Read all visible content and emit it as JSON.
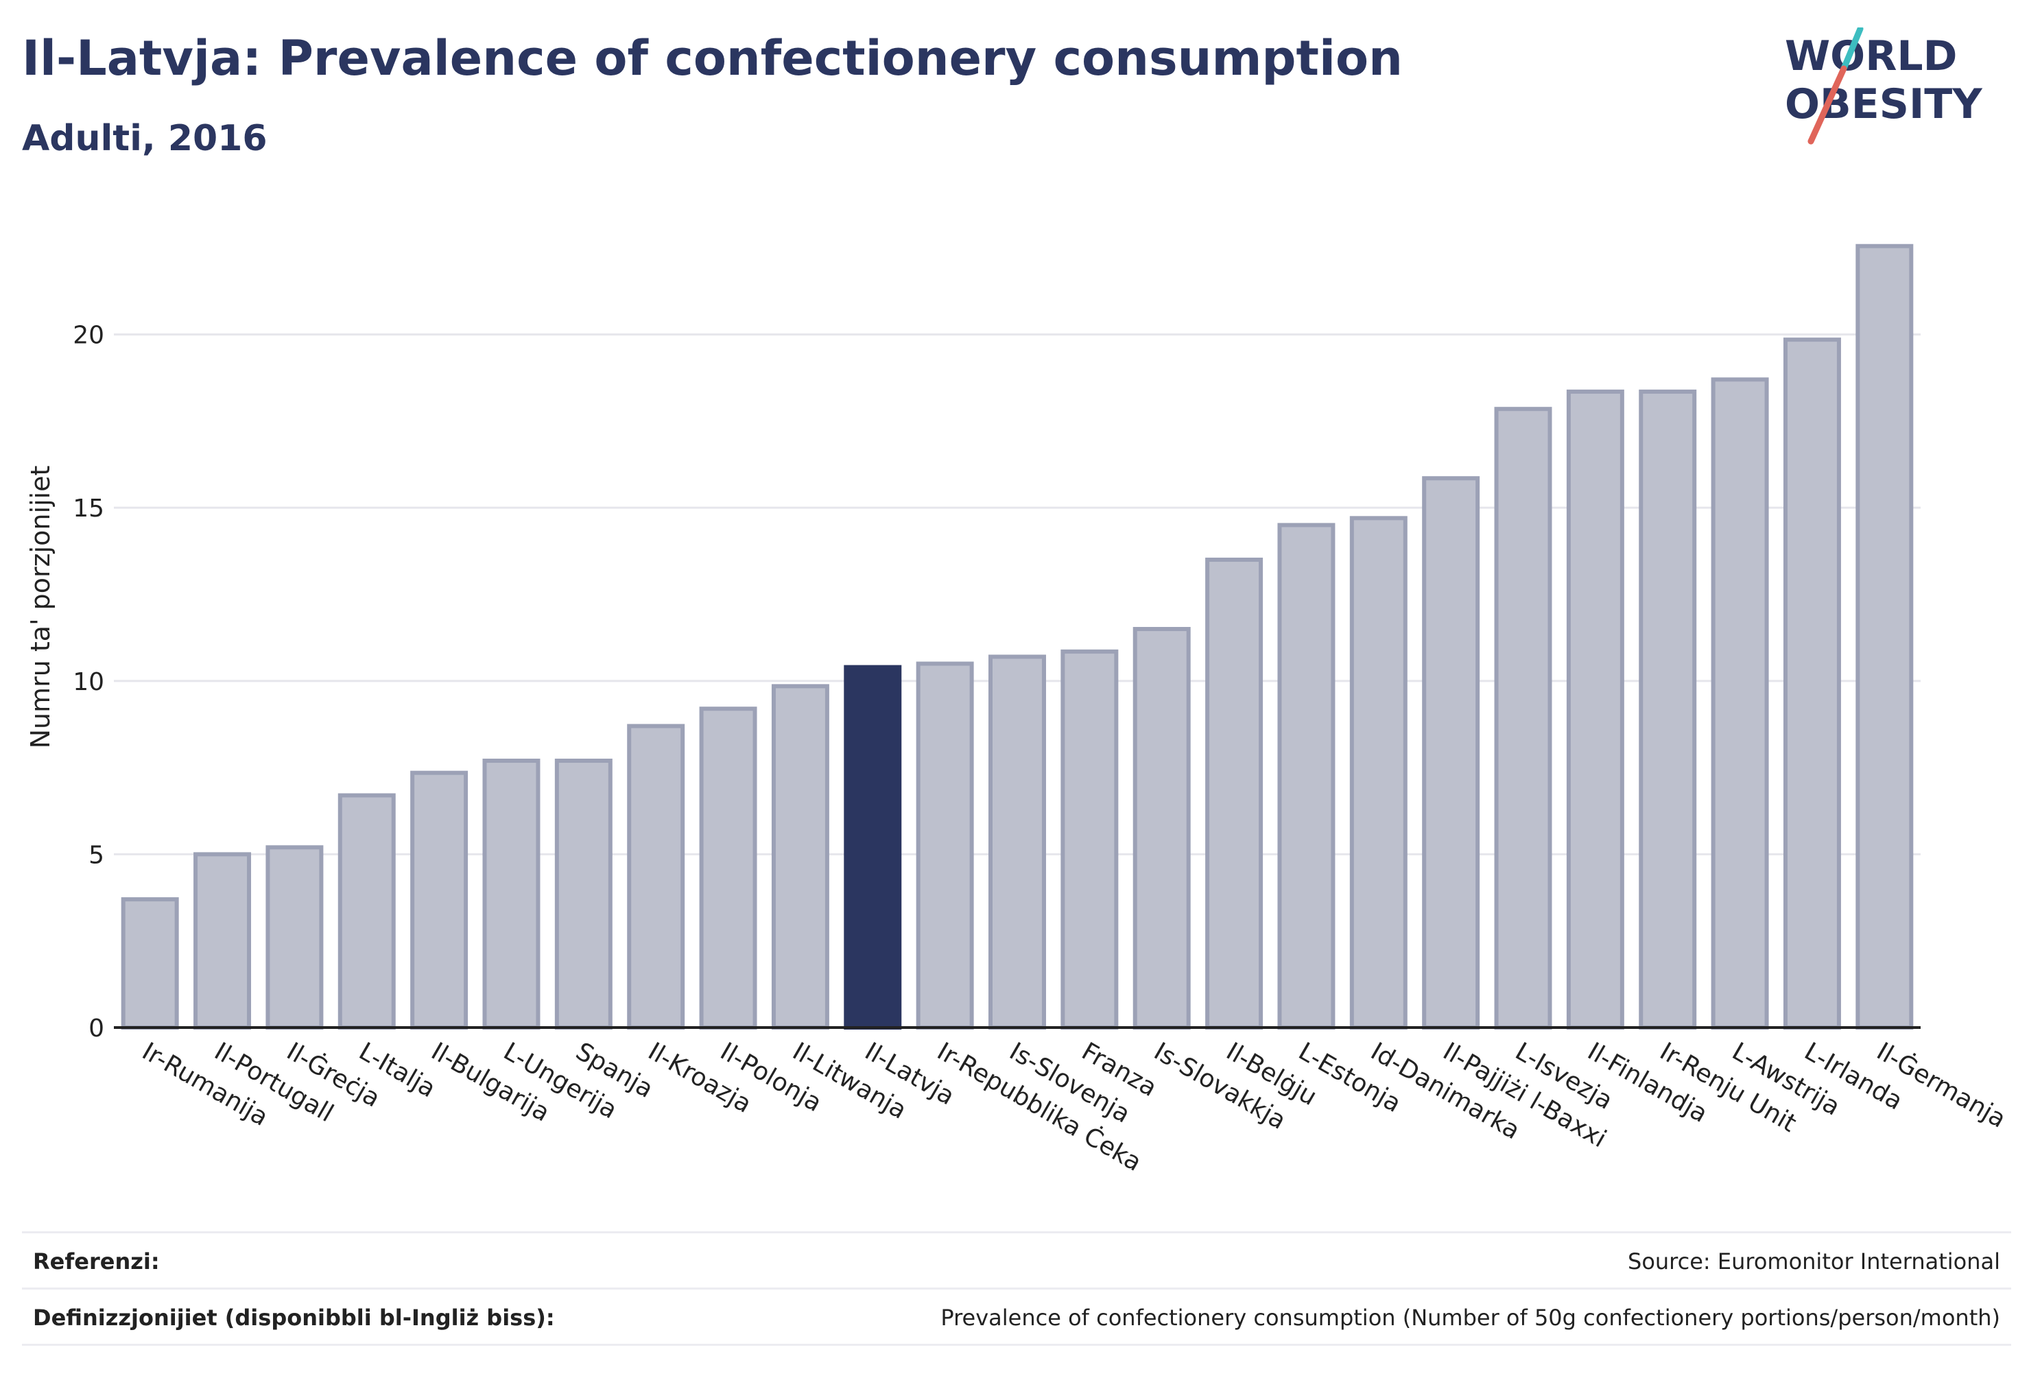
{
  "header": {
    "title": "Il-Latvja: Prevalence of confectionery consumption",
    "subtitle": "Adulti, 2016"
  },
  "logo": {
    "line1": "WORLD",
    "line2": "OBESITY",
    "colors": {
      "text": "#2b3660",
      "slash_teal": "#3dbdc0",
      "slash_red": "#e0655a"
    }
  },
  "colors": {
    "bar_default": "#bdc0cd",
    "bar_border": "#9ca1b6",
    "bar_highlight": "#2b3660",
    "grid": "#e6e6ec",
    "axis": "#222222"
  },
  "chart_data": {
    "type": "bar",
    "ylabel": "Numru ta' porzjonijiet",
    "ylim": [
      0,
      23
    ],
    "yticks": [
      0,
      5,
      10,
      15,
      20
    ],
    "grid": true,
    "highlight": "Il-Latvja",
    "categories": [
      "Ir-Rumanija",
      "Il-Portugall",
      "Il-Ġreċja",
      "L-Italja",
      "Il-Bulgarija",
      "L-Ungerija",
      "Spanja",
      "Il-Kroazja",
      "Il-Polonja",
      "Il-Litwanja",
      "Il-Latvja",
      "Ir-Repubblika Ċeka",
      "Is-Slovenja",
      "Franza",
      "Is-Slovakkja",
      "Il-Belġju",
      "L-Estonja",
      "Id-Danimarka",
      "Il-Pajjiżi l-Baxxi",
      "L-Isvezja",
      "Il-Finlandja",
      "Ir-Renju Unit",
      "L-Awstrija",
      "L-Irlanda",
      "Il-Ġermanja"
    ],
    "values": [
      3.7,
      5.0,
      5.2,
      6.7,
      7.35,
      7.7,
      7.7,
      8.7,
      9.2,
      9.85,
      10.4,
      10.5,
      10.7,
      10.85,
      11.5,
      13.5,
      14.5,
      14.7,
      15.85,
      17.85,
      18.35,
      18.35,
      18.7,
      19.85,
      22.55
    ]
  },
  "footer": {
    "references_label": "Referenzi:",
    "references_value": "Source: Euromonitor International",
    "definitions_label": "Definizzjonijiet (disponibbli bl-Ingliż biss):",
    "definitions_value": "Prevalence of confectionery consumption (Number of 50g confectionery portions/person/month)"
  }
}
